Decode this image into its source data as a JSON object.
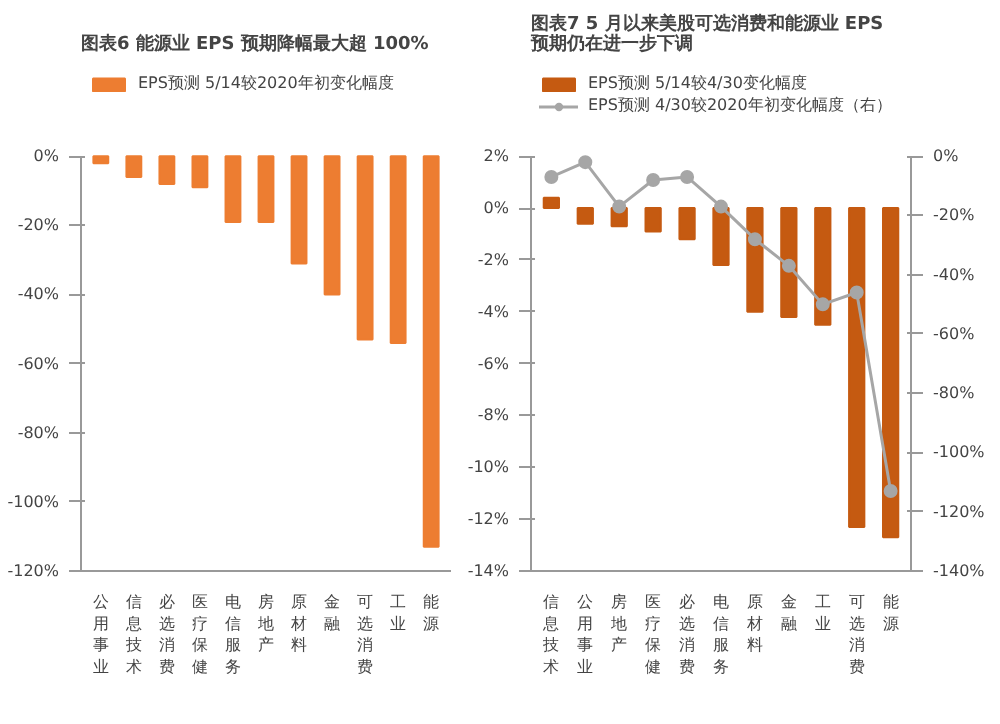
{
  "chart_data": [
    {
      "type": "bar",
      "title": "图表6 能源业 EPS 预期降幅最大超 100%",
      "categories": [
        "公用事业",
        "信息技术",
        "必选消费",
        "医疗保健",
        "电信服务",
        "房地产",
        "原材料",
        "金融",
        "可选消费",
        "工业",
        "能源"
      ],
      "series": [
        {
          "name": "EPS预测 5/14较2020年初变化幅度",
          "color": "#ed7d31",
          "values": [
            -2,
            -6,
            -8,
            -9,
            -19,
            -19,
            -31,
            -40,
            -53,
            -54,
            -113
          ]
        }
      ],
      "ylim": [
        -120,
        0
      ],
      "yticks": [
        {
          "value": -120,
          "label": "-120%"
        },
        {
          "value": -100,
          "label": "-100%"
        },
        {
          "value": -80,
          "label": "-80%"
        },
        {
          "value": -60,
          "label": "-60%"
        },
        {
          "value": -40,
          "label": "-40%"
        },
        {
          "value": -20,
          "label": "-20%"
        },
        {
          "value": 0,
          "label": "0%"
        }
      ],
      "legend": "top",
      "grid": false
    },
    {
      "type": "bar",
      "title": "图表7 5 月以来美股可选消费和能源业 EPS 预期仍在进一步下调",
      "categories": [
        "信息技术",
        "公用事业",
        "房地产",
        "医疗保健",
        "必选消费",
        "电信服务",
        "原材料",
        "金融",
        "工业",
        "可选消费",
        "能源"
      ],
      "series": [
        {
          "name": "EPS预测 5/14较4/30变化幅度",
          "color": "#c55a11",
          "values": [
            0.4,
            -0.6,
            -0.7,
            -0.9,
            -1.2,
            -2.2,
            -4,
            -4.2,
            -4.5,
            -12.3,
            -12.7
          ]
        },
        {
          "name": "EPS预测 4/30较2020年初变化幅度（右）",
          "type": "line",
          "axis": "y2",
          "marker": "circle",
          "color": "#a6a6a6",
          "values": [
            -7,
            -2,
            -17,
            -8,
            -7,
            -17,
            -28,
            -37,
            -50,
            -46,
            -113
          ]
        }
      ],
      "ylim": [
        -14,
        2
      ],
      "yticks": [
        {
          "value": -14,
          "label": "-14%"
        },
        {
          "value": -12,
          "label": "-12%"
        },
        {
          "value": -10,
          "label": "-10%"
        },
        {
          "value": -8,
          "label": "-8%"
        },
        {
          "value": -6,
          "label": "-6%"
        },
        {
          "value": -4,
          "label": "-4%"
        },
        {
          "value": -2,
          "label": "-2%"
        },
        {
          "value": 0,
          "label": "0%"
        },
        {
          "value": 2,
          "label": "2%"
        }
      ],
      "y2lim": [
        -140,
        0
      ],
      "y2ticks": [
        {
          "value": -140,
          "label": "-140%"
        },
        {
          "value": -120,
          "label": "-120%"
        },
        {
          "value": -100,
          "label": "-100%"
        },
        {
          "value": -80,
          "label": "-80%"
        },
        {
          "value": -60,
          "label": "-60%"
        },
        {
          "value": -40,
          "label": "-40%"
        },
        {
          "value": -20,
          "label": "-20%"
        },
        {
          "value": 0,
          "label": "0%"
        }
      ],
      "legend": "top",
      "grid": false
    }
  ]
}
